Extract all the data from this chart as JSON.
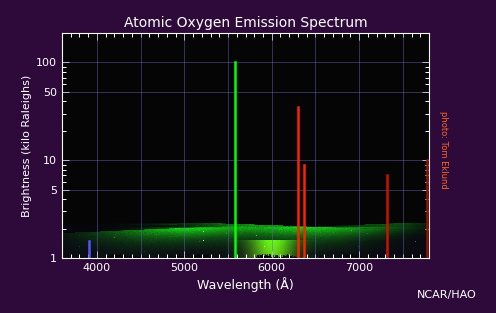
{
  "title": "Atomic Oxygen Emission Spectrum",
  "xlabel": "Wavelength (Å)",
  "ylabel": "Brightness (kilo Raleighs)",
  "bg_color": "#2d0a3a",
  "plot_bg_color": "#000000",
  "axis_color": "#ffffff",
  "title_color": "#ffffff",
  "label_color": "#ffffff",
  "tick_color": "#ffffff",
  "xlim": [
    3600,
    7800
  ],
  "ylim": [
    1,
    200
  ],
  "yticks": [
    1,
    5,
    10,
    50,
    100
  ],
  "xticks": [
    4000,
    5000,
    6000,
    7000
  ],
  "grid_color": "#6666bb",
  "grid_alpha": 0.55,
  "spectral_lines": [
    {
      "wavelength": 3914,
      "brightness": 1.5,
      "color": "#5555ff"
    },
    {
      "wavelength": 5577,
      "brightness": 100,
      "color": "#00ff00"
    },
    {
      "wavelength": 6300,
      "brightness": 35,
      "color": "#ff2200"
    },
    {
      "wavelength": 6364,
      "brightness": 9,
      "color": "#ff2200"
    },
    {
      "wavelength": 7320,
      "brightness": 7,
      "color": "#cc1100"
    },
    {
      "wavelength": 7774,
      "brightness": 10,
      "color": "#991100"
    }
  ],
  "credit_text": "photo: Tom Eklund",
  "ncar_text": "NCAR/HAO"
}
